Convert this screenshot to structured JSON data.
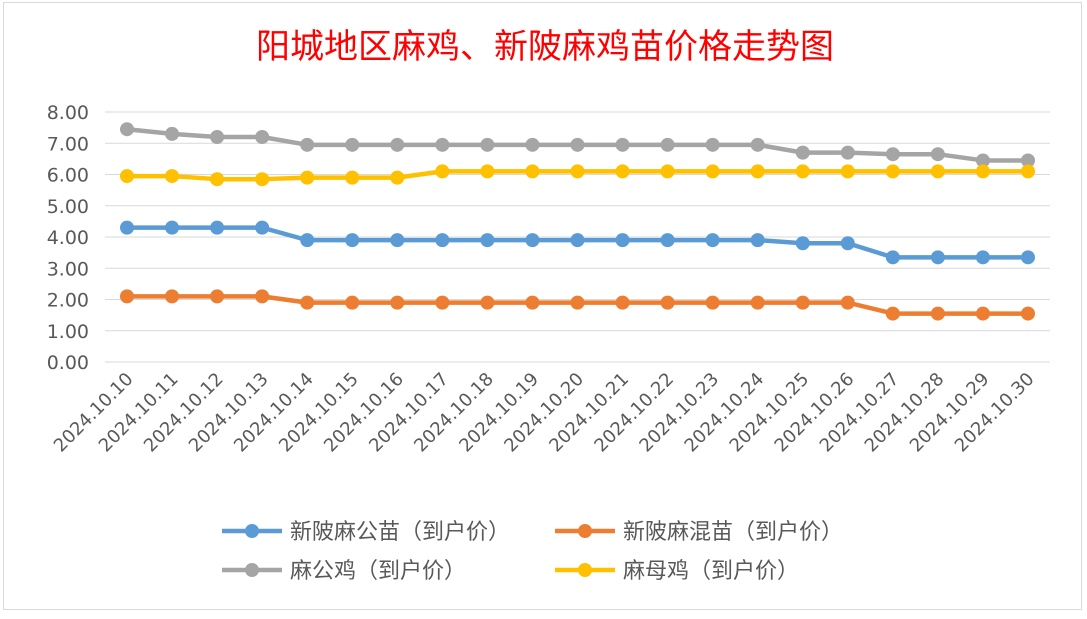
{
  "chart_data": {
    "type": "line",
    "title": "阳城地区麻鸡、新陂麻鸡苗价格走势图",
    "xlabel": "",
    "ylabel": "",
    "ylim": [
      0,
      8
    ],
    "yticks": [
      "0.00",
      "1.00",
      "2.00",
      "3.00",
      "4.00",
      "5.00",
      "6.00",
      "7.00",
      "8.00"
    ],
    "grid": true,
    "legend_position": "bottom",
    "categories": [
      "2024.10.10",
      "2024.10.11",
      "2024.10.12",
      "2024.10.13",
      "2024.10.14",
      "2024.10.15",
      "2024.10.16",
      "2024.10.17",
      "2024.10.18",
      "2024.10.19",
      "2024.10.20",
      "2024.10.21",
      "2024.10.22",
      "2024.10.23",
      "2024.10.24",
      "2024.10.25",
      "2024.10.26",
      "2024.10.27",
      "2024.10.28",
      "2024.10.29",
      "2024.10.30"
    ],
    "series": [
      {
        "name": "新陂麻公苗（到户价）",
        "color": "#5b9bd5",
        "values": [
          4.3,
          4.3,
          4.3,
          4.3,
          3.9,
          3.9,
          3.9,
          3.9,
          3.9,
          3.9,
          3.9,
          3.9,
          3.9,
          3.9,
          3.9,
          3.8,
          3.8,
          3.35,
          3.35,
          3.35,
          3.35
        ]
      },
      {
        "name": "新陂麻混苗（到户价）",
        "color": "#ed7d31",
        "values": [
          2.1,
          2.1,
          2.1,
          2.1,
          1.9,
          1.9,
          1.9,
          1.9,
          1.9,
          1.9,
          1.9,
          1.9,
          1.9,
          1.9,
          1.9,
          1.9,
          1.9,
          1.55,
          1.55,
          1.55,
          1.55
        ]
      },
      {
        "name": "麻公鸡（到户价）",
        "color": "#a5a5a5",
        "values": [
          7.45,
          7.3,
          7.2,
          7.2,
          6.95,
          6.95,
          6.95,
          6.95,
          6.95,
          6.95,
          6.95,
          6.95,
          6.95,
          6.95,
          6.95,
          6.7,
          6.7,
          6.65,
          6.65,
          6.45,
          6.45
        ]
      },
      {
        "name": "麻母鸡（到户价）",
        "color": "#ffc000",
        "values": [
          5.95,
          5.95,
          5.85,
          5.85,
          5.9,
          5.9,
          5.9,
          6.1,
          6.1,
          6.1,
          6.1,
          6.1,
          6.1,
          6.1,
          6.1,
          6.1,
          6.1,
          6.1,
          6.1,
          6.1,
          6.1
        ]
      }
    ]
  },
  "style": {
    "title_color": "#ff0000",
    "axis_text_color": "#595959",
    "grid_color": "#d9d9d9"
  }
}
